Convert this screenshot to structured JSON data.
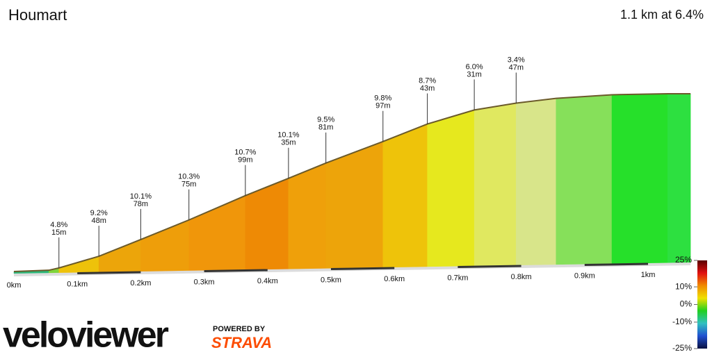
{
  "title": "Houmart",
  "summary": "1.1 km at 6.4%",
  "branding": {
    "logo": "veloviewer",
    "powered_by": "POWERED BY",
    "partner": "STRAVA"
  },
  "chart_data": {
    "type": "elevation-profile",
    "xlim": [
      0,
      1.067
    ],
    "ylim": [
      0,
      70
    ],
    "x": [
      0,
      0.055,
      0.071,
      0.134,
      0.2,
      0.276,
      0.365,
      0.433,
      0.492,
      0.582,
      0.652,
      0.726,
      0.792,
      0.855,
      0.943,
      1.031,
      1.067
    ],
    "elevation": [
      0,
      0.5,
      1.4,
      6,
      12.6,
      20.3,
      29.9,
      36.7,
      42.7,
      51.2,
      58.1,
      63.6,
      66.3,
      68.2,
      69.6,
      70,
      70
    ],
    "segment_colors": [
      "#2db87a",
      "#7fd43a",
      "#eec20a",
      "#eca50a",
      "#ee9e0a",
      "#f0960a",
      "#ee8a05",
      "#efa00a",
      "#eda40a",
      "#eec30a",
      "#e6e81e",
      "#e0e860",
      "#d8e58a",
      "#86e05a",
      "#26e02a",
      "#2de040"
    ],
    "xticks": [
      {
        "value": 0,
        "label": "0km"
      },
      {
        "value": 0.1,
        "label": "0.1km"
      },
      {
        "value": 0.2,
        "label": "0.2km"
      },
      {
        "value": 0.3,
        "label": "0.3km"
      },
      {
        "value": 0.4,
        "label": "0.4km"
      },
      {
        "value": 0.5,
        "label": "0.5km"
      },
      {
        "value": 0.6,
        "label": "0.6km"
      },
      {
        "value": 0.7,
        "label": "0.7km"
      },
      {
        "value": 0.8,
        "label": "0.8km"
      },
      {
        "value": 0.9,
        "label": "0.9km"
      },
      {
        "value": 1,
        "label": "1km"
      }
    ],
    "annotations": {
      "x": [
        0.071,
        0.134,
        0.2,
        0.276,
        0.365,
        0.433,
        0.492,
        0.582,
        0.652,
        0.726,
        0.792
      ],
      "grade_labels": [
        "4.8%",
        "9.2%",
        "10.1%",
        "10.3%",
        "10.7%",
        "10.1%",
        "9.5%",
        "9.8%",
        "8.7%",
        "6.0%",
        "3.4%"
      ],
      "length_labels": [
        "15m",
        "48m",
        "78m",
        "75m",
        "99m",
        "35m",
        "81m",
        "97m",
        "43m",
        "31m",
        "47m"
      ]
    },
    "legend": {
      "lim": [
        -25,
        25
      ],
      "colors": [
        "#5a0000",
        "#e01010",
        "#f08a00",
        "#f0e000",
        "#20d020",
        "#30c0c0",
        "#2050d0",
        "#0a1040"
      ],
      "ticks": [
        {
          "value": 25,
          "label": "25%"
        },
        {
          "value": 10,
          "label": "10%"
        },
        {
          "value": 0,
          "label": "0%"
        },
        {
          "value": -10,
          "label": "-10%"
        },
        {
          "value": -25,
          "label": "-25%"
        }
      ]
    }
  }
}
